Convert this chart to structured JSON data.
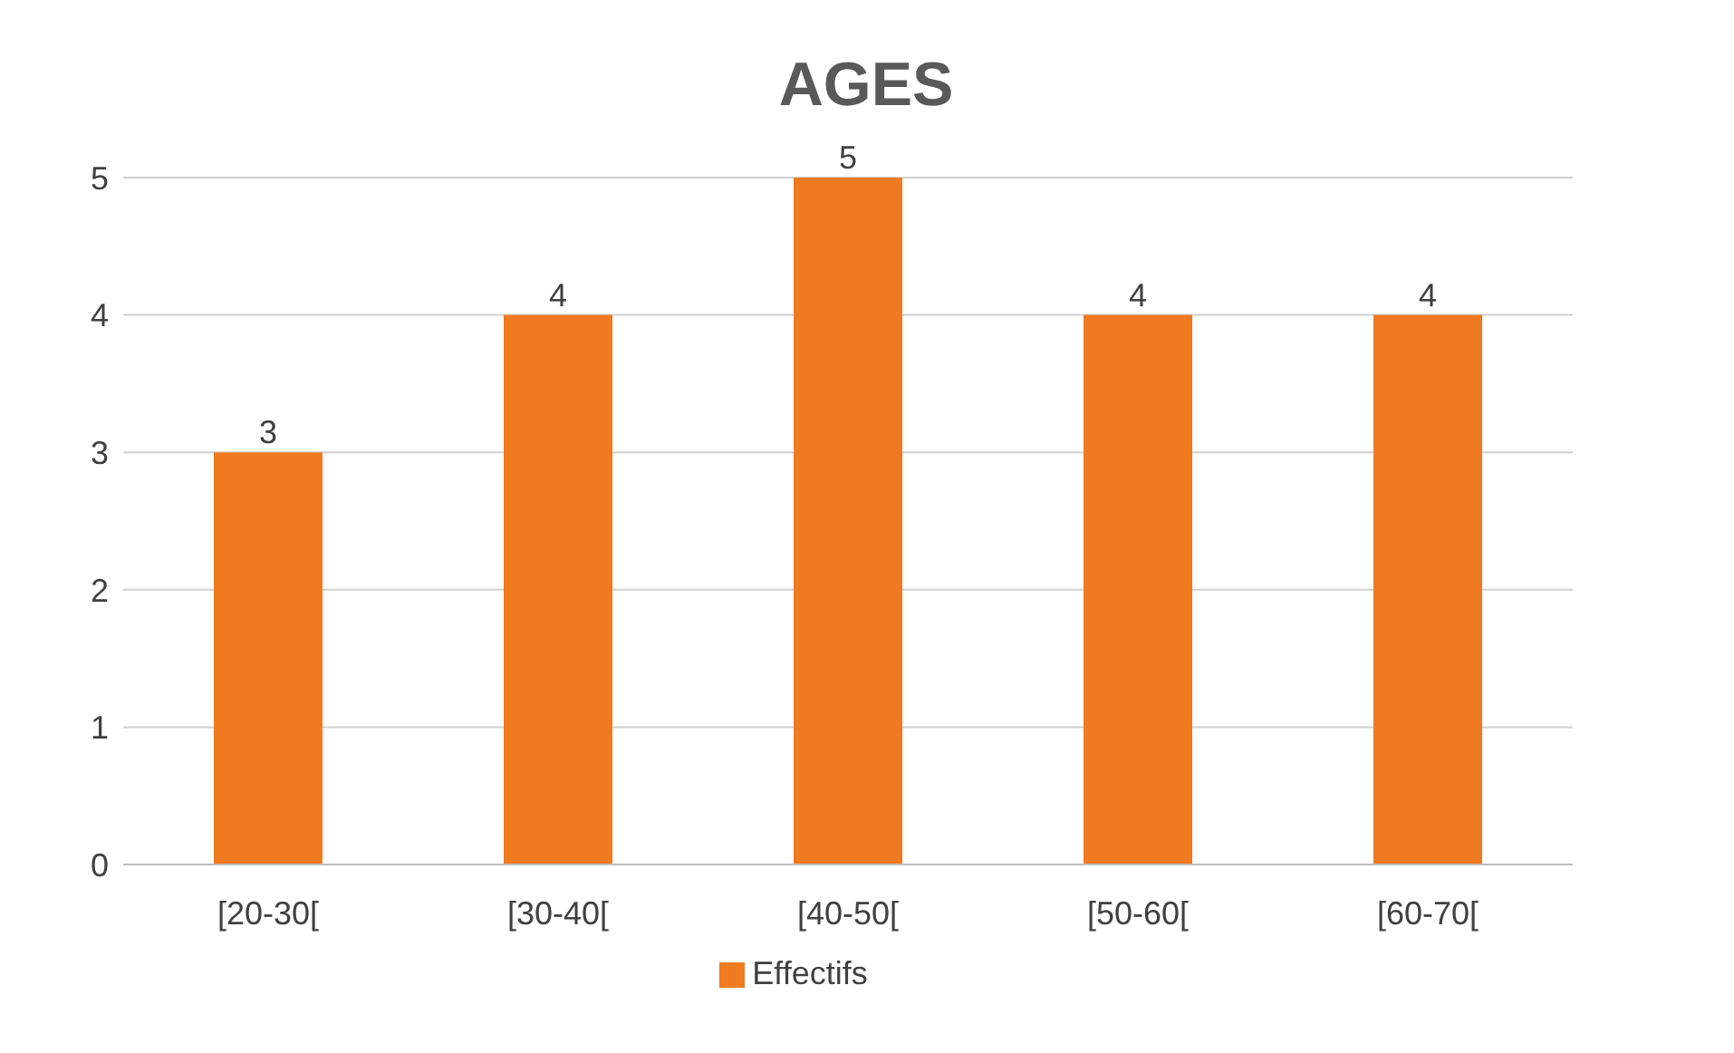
{
  "chart_data": {
    "type": "bar",
    "title": "AGES",
    "categories": [
      "[20-30[",
      "[30-40[",
      "[40-50[",
      "[50-60[",
      "[60-70["
    ],
    "series": [
      {
        "name": "Effectifs",
        "color": "#f07a20",
        "values": [
          3,
          4,
          5,
          4,
          4
        ]
      }
    ],
    "ylim": [
      0,
      5
    ],
    "yticks": [
      0,
      1,
      2,
      3,
      4,
      5
    ],
    "grid": "y",
    "legend": "bottom",
    "data_labels": true
  }
}
